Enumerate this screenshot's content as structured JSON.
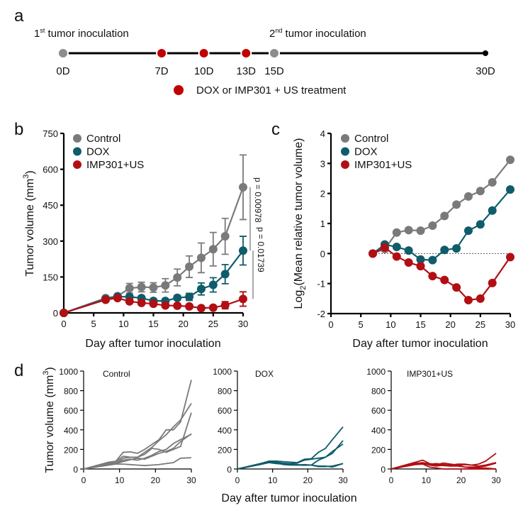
{
  "panels": {
    "a": "a",
    "b": "b",
    "c": "c",
    "d": "d"
  },
  "timeline": {
    "first_label": {
      "num": "1",
      "sup": "st",
      "text": " tumor inoculation"
    },
    "second_label": {
      "num": "2",
      "sup": "nd",
      "text": " tumor inoculation"
    },
    "points": [
      {
        "label": "0D",
        "day": 0,
        "kind": "inoculation"
      },
      {
        "label": "7D",
        "day": 7,
        "kind": "treatment"
      },
      {
        "label": "10D",
        "day": 10,
        "kind": "treatment"
      },
      {
        "label": "13D",
        "day": 13,
        "kind": "treatment"
      },
      {
        "label": "15D",
        "day": 15,
        "kind": "inoculation"
      },
      {
        "label": "30D",
        "day": 30,
        "kind": "end"
      }
    ],
    "legend": "DOX or IMP301 + US treatment",
    "colors": {
      "inoculation": "#8c8c8c",
      "treatment": "#c00000",
      "end": "#000000"
    }
  },
  "chart_data": [
    {
      "id": "b",
      "type": "line",
      "xlabel": "Day after tumor inoculation",
      "ylabel": {
        "text": "Tumor volume  (mm",
        "sup": "3",
        "end": ")"
      },
      "xlim": [
        0,
        30
      ],
      "ylim": [
        0,
        750
      ],
      "xticks": [
        0,
        5,
        10,
        15,
        20,
        25,
        30
      ],
      "yticks": [
        0,
        150,
        300,
        450,
        600,
        750
      ],
      "legend": "top-left",
      "x": [
        0,
        7,
        9,
        11,
        13,
        15,
        17,
        19,
        21,
        23,
        25,
        27,
        30
      ],
      "series": [
        {
          "name": "Control",
          "color": "#7a7a7a",
          "values": [
            0,
            62,
            70,
            103,
            108,
            106,
            115,
            148,
            193,
            230,
            266,
            320,
            525
          ],
          "errors": [
            0,
            8,
            6,
            20,
            20,
            20,
            28,
            35,
            45,
            62,
            70,
            75,
            135
          ]
        },
        {
          "name": "DOX",
          "color": "#0f5c6b",
          "values": [
            0,
            58,
            68,
            67,
            62,
            50,
            50,
            63,
            67,
            100,
            117,
            162,
            260
          ],
          "errors": [
            0,
            5,
            5,
            8,
            8,
            8,
            8,
            10,
            15,
            25,
            30,
            40,
            60
          ]
        },
        {
          "name": "IMP301+US",
          "color": "#b10f14",
          "values": [
            0,
            55,
            62,
            48,
            42,
            38,
            31,
            30,
            27,
            20,
            22,
            32,
            58
          ],
          "errors": [
            0,
            5,
            5,
            6,
            6,
            6,
            6,
            6,
            6,
            6,
            6,
            15,
            30
          ]
        }
      ],
      "annotations": [
        {
          "text": "p = 0.00978",
          "between": [
            "Control",
            "DOX"
          ]
        },
        {
          "text": "p = 0.01739",
          "between": [
            "DOX",
            "IMP301+US"
          ]
        }
      ]
    },
    {
      "id": "c",
      "type": "line",
      "xlabel": "Day after tumor inoculation",
      "ylabel": {
        "text": "Log",
        "sub": "2",
        "end": "(Mean relative tumor volume)"
      },
      "xlim": [
        0,
        30
      ],
      "ylim": [
        -2,
        4
      ],
      "xticks": [
        0,
        5,
        10,
        15,
        20,
        25,
        30
      ],
      "yticks": [
        -2,
        -1,
        0,
        1,
        2,
        3,
        4
      ],
      "legend": "top-left",
      "reference_line": 0,
      "x": [
        7,
        9,
        11,
        13,
        15,
        17,
        19,
        21,
        23,
        25,
        27,
        30
      ],
      "series": [
        {
          "name": "Control",
          "color": "#7a7a7a",
          "values": [
            0,
            0.15,
            0.7,
            0.78,
            0.76,
            0.93,
            1.25,
            1.63,
            1.9,
            2.08,
            2.37,
            3.12
          ]
        },
        {
          "name": "DOX",
          "color": "#0f5c6b",
          "values": [
            0,
            0.3,
            0.22,
            0.1,
            -0.2,
            -0.22,
            0.12,
            0.17,
            0.76,
            0.97,
            1.43,
            2.13
          ]
        },
        {
          "name": "IMP301+US",
          "color": "#b10f14",
          "values": [
            0,
            0.2,
            -0.1,
            -0.3,
            -0.42,
            -0.75,
            -0.88,
            -1.13,
            -1.55,
            -1.5,
            -0.98,
            -0.12
          ]
        }
      ]
    },
    {
      "id": "d",
      "type": "line",
      "xlabel": "Day after tumor inoculation",
      "ylabel": {
        "text": "Tumor volume  (mm",
        "sup": "3",
        "end": ")"
      },
      "xlim": [
        0,
        30
      ],
      "ylim": [
        0,
        1000
      ],
      "xticks": [
        0,
        10,
        20,
        30
      ],
      "yticks": [
        0,
        200,
        400,
        600,
        800,
        1000
      ],
      "x": [
        0,
        7,
        9,
        11,
        13,
        15,
        17,
        19,
        21,
        23,
        25,
        27,
        30
      ],
      "subplots": [
        {
          "title": "Control",
          "color": "#7a7a7a",
          "individuals": [
            [
              0,
              70,
              80,
              170,
              175,
              160,
              200,
              250,
              300,
              400,
              400,
              480,
              910
            ],
            [
              0,
              60,
              75,
              130,
              120,
              120,
              170,
              220,
              290,
              350,
              430,
              500,
              670
            ],
            [
              0,
              50,
              60,
              110,
              120,
              120,
              150,
              210,
              200,
              170,
              200,
              230,
              575
            ],
            [
              0,
              55,
              60,
              90,
              100,
              90,
              110,
              140,
              180,
              200,
              260,
              300,
              355
            ],
            [
              0,
              45,
              55,
              75,
              95,
              110,
              100,
              130,
              160,
              180,
              210,
              280,
              360
            ],
            [
              0,
              40,
              50,
              50,
              45,
              40,
              35,
              40,
              45,
              55,
              65,
              110,
              115
            ]
          ]
        },
        {
          "title": "DOX",
          "color": "#0f5c6b",
          "individuals": [
            [
              0,
              60,
              80,
              80,
              75,
              70,
              65,
              100,
              105,
              170,
              210,
              300,
              430
            ],
            [
              0,
              55,
              75,
              70,
              60,
              55,
              60,
              90,
              100,
              110,
              120,
              160,
              290
            ],
            [
              0,
              50,
              70,
              60,
              55,
              50,
              45,
              40,
              40,
              90,
              120,
              180,
              255
            ],
            [
              0,
              50,
              65,
              55,
              50,
              45,
              40,
              45,
              40,
              30,
              30,
              20,
              55
            ],
            [
              0,
              55,
              70,
              65,
              45,
              40,
              40,
              38,
              40,
              25,
              25,
              30,
              55
            ]
          ]
        },
        {
          "title": "IMP301+US",
          "color": "#b10f14",
          "individuals": [
            [
              0,
              70,
              90,
              55,
              45,
              60,
              50,
              40,
              45,
              40,
              50,
              80,
              160
            ],
            [
              0,
              55,
              65,
              50,
              55,
              45,
              40,
              50,
              50,
              40,
              30,
              40,
              65
            ],
            [
              0,
              50,
              60,
              40,
              30,
              40,
              30,
              30,
              20,
              20,
              20,
              30,
              60
            ],
            [
              0,
              45,
              50,
              20,
              10,
              0,
              0,
              0,
              0,
              0,
              0,
              0,
              0
            ],
            [
              0,
              60,
              60,
              45,
              40,
              35,
              30,
              40,
              20,
              10,
              10,
              10,
              0
            ]
          ]
        }
      ]
    }
  ]
}
